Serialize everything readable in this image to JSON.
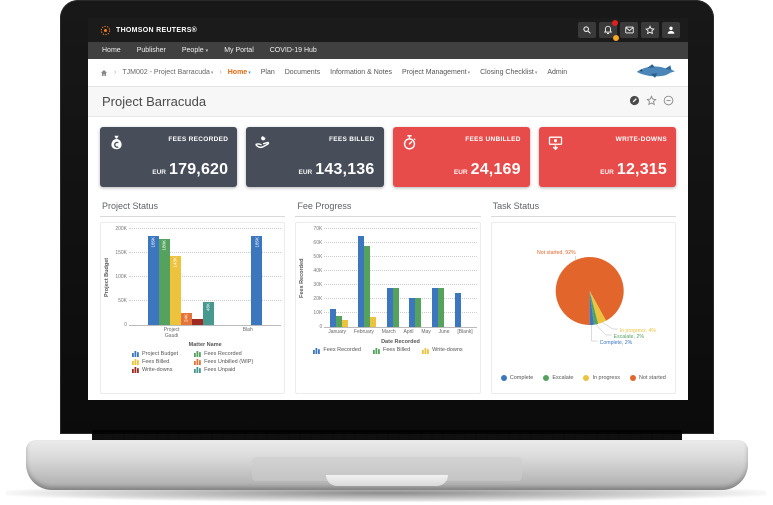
{
  "topbar": {
    "brand": "THOMSON REUTERS®",
    "icons": [
      "search",
      "notifications",
      "mail",
      "favorites",
      "account"
    ]
  },
  "nav": {
    "items": [
      {
        "label": "Home",
        "caret": false
      },
      {
        "label": "Publisher",
        "caret": false
      },
      {
        "label": "People",
        "caret": true
      },
      {
        "label": "My Portal",
        "caret": false
      },
      {
        "label": "COVID-19 Hub",
        "caret": false
      }
    ]
  },
  "breadcrumb": {
    "matter": "TJM002 - Project Barracuda",
    "tabs": [
      {
        "label": "Home",
        "active": true,
        "caret": true
      },
      {
        "label": "Plan",
        "active": false,
        "caret": false
      },
      {
        "label": "Documents",
        "active": false,
        "caret": false
      },
      {
        "label": "Information & Notes",
        "active": false,
        "caret": false
      },
      {
        "label": "Project Management",
        "active": false,
        "caret": true
      },
      {
        "label": "Closing Checklist",
        "active": false,
        "caret": true
      },
      {
        "label": "Admin",
        "active": false,
        "caret": false
      }
    ]
  },
  "page": {
    "title": "Project Barracuda",
    "actions": [
      "edit",
      "favorite",
      "collapse"
    ]
  },
  "kpis": [
    {
      "label": "FEES RECORDED",
      "currency": "EUR",
      "value": "179,620",
      "color": "#474e59",
      "icon": "money-bag-icon"
    },
    {
      "label": "FEES BILLED",
      "currency": "EUR",
      "value": "143,136",
      "color": "#474e59",
      "icon": "hand-coin-icon"
    },
    {
      "label": "FEES UNBILLED",
      "currency": "EUR",
      "value": "24,169",
      "color": "#e84c4a",
      "icon": "stopwatch-icon"
    },
    {
      "label": "WRITE-DOWNS",
      "currency": "EUR",
      "value": "12,315",
      "color": "#e84c4a",
      "icon": "cash-down-icon"
    }
  ],
  "chart_data": [
    {
      "type": "bar",
      "title": "Project Status",
      "xlabel": "Matter Name",
      "ylabel": "Project Budget",
      "ylim": [
        0,
        200000
      ],
      "yticks": [
        "0",
        "50K",
        "100K",
        "150K",
        "200K"
      ],
      "grid": true,
      "legend_position": "bottom",
      "categories": [
        "Project Gaudi",
        "Blah"
      ],
      "series": [
        {
          "name": "Project Budget",
          "color": "#3b76be",
          "values": [
            185000,
            185000
          ],
          "labels": [
            "185K",
            "185K"
          ]
        },
        {
          "name": "Fees Recorded",
          "color": "#55a25f",
          "values": [
            180000,
            null
          ],
          "labels": [
            "180K",
            null
          ]
        },
        {
          "name": "Fees Billed",
          "color": "#edc33e",
          "values": [
            143000,
            null
          ],
          "labels": [
            "143K",
            null
          ]
        },
        {
          "name": "Fees Unbilled (WIP)",
          "color": "#e5743a",
          "values": [
            24000,
            null
          ],
          "labels": [
            "24K",
            null
          ]
        },
        {
          "name": "Write-downs",
          "color": "#9e2b23",
          "values": [
            12000,
            null
          ],
          "labels": [
            null,
            null
          ]
        },
        {
          "name": "Fees Unpaid",
          "color": "#47988e",
          "values": [
            48000,
            null
          ],
          "labels": [
            "48K",
            null
          ]
        }
      ]
    },
    {
      "type": "bar",
      "title": "Fee Progress",
      "xlabel": "Date Recorded",
      "ylabel": "Fees Recorded",
      "ylim": [
        0,
        70000
      ],
      "yticks": [
        "0",
        "10K",
        "20K",
        "30K",
        "40K",
        "50K",
        "60K",
        "70K"
      ],
      "grid": true,
      "legend_position": "bottom",
      "categories": [
        "January",
        "February",
        "March",
        "April",
        "May",
        "June",
        "[Blank]"
      ],
      "series": [
        {
          "name": "Fees Recorded",
          "color": "#3b76be",
          "values": [
            13000,
            65000,
            28000,
            21000,
            27500,
            24000,
            null
          ]
        },
        {
          "name": "Fees Billed",
          "color": "#55a25f",
          "values": [
            8000,
            58000,
            28000,
            21000,
            27500,
            null,
            null
          ]
        },
        {
          "name": "Write-downs",
          "color": "#edc33e",
          "values": [
            5000,
            7000,
            null,
            null,
            null,
            null,
            null
          ]
        }
      ]
    },
    {
      "type": "pie",
      "title": "Task Status",
      "legend_position": "bottom",
      "slices": [
        {
          "name": "Not started",
          "pct": 92,
          "color": "#e2662b",
          "label": "Not started, 92%"
        },
        {
          "name": "In progress",
          "pct": 4,
          "color": "#edc33e",
          "label": "In progress, 4%"
        },
        {
          "name": "Escalate",
          "pct": 2,
          "color": "#55a25f",
          "label": "Escalate, 2%"
        },
        {
          "name": "Complete",
          "pct": 2,
          "color": "#3b76be",
          "label": "Complete, 2%"
        }
      ],
      "legend": [
        {
          "name": "Complete",
          "color": "#3b76be"
        },
        {
          "name": "Escalate",
          "color": "#55a25f"
        },
        {
          "name": "In progress",
          "color": "#edc33e"
        },
        {
          "name": "Not started",
          "color": "#e2662b"
        }
      ]
    }
  ]
}
